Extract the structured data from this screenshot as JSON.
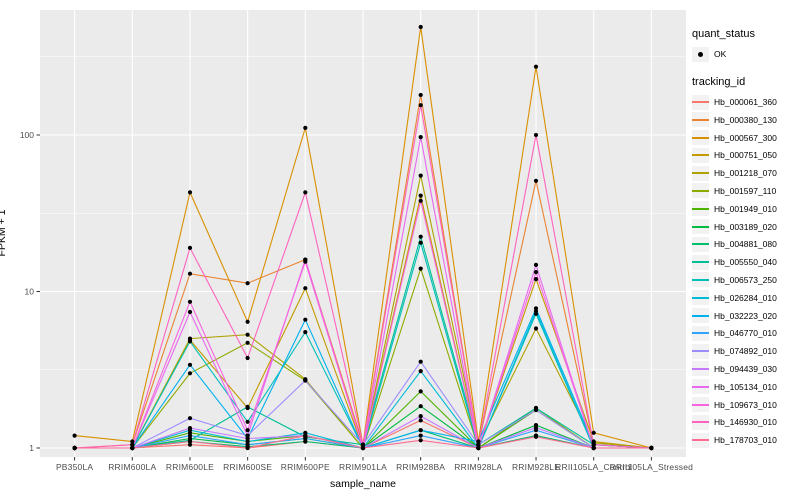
{
  "axes": {
    "x_label": "sample_name",
    "y_label": "FPKM + 1"
  },
  "legend": {
    "quant_title": "quant_status",
    "quant_items": [
      {
        "label": "OK",
        "marker": "point-icon"
      }
    ],
    "tracking_title": "tracking_id"
  },
  "colors": {
    "panel_background": "#EBEBEB",
    "gridline": "#FFFFFF",
    "tick_label": "#4D4D4D",
    "tick_mark": "#333333",
    "point": "#000000",
    "legend_key_background": "#F2F2F2"
  },
  "chart_data": {
    "type": "line",
    "x_axis": "sample_name",
    "y_axis": "FPKM + 1",
    "y_scale": "log10",
    "y_ticks": [
      1,
      10,
      100
    ],
    "y_minor_ticks": [
      3.162,
      31.62,
      316.2
    ],
    "ylim": [
      1,
      550
    ],
    "grid": true,
    "legend_position": "right",
    "point_color": "#000000",
    "categories": [
      "PB350LA",
      "RRIM600LA",
      "RRIM600LE",
      "RRIM600SE",
      "RRIM600PE",
      "RRIM901LA",
      "RRIM928BA",
      "RRIM928LA",
      "RRIM928LE",
      "RRII105LA_Control",
      "RRII105LA_Stressed"
    ],
    "series": [
      {
        "name": "Hb_000061_360",
        "color": "#F8766D",
        "values": [
          1,
          1,
          1.05,
          1,
          1.1,
          1,
          1.5,
          1,
          1.2,
          1,
          1
        ]
      },
      {
        "name": "Hb_000380_130",
        "color": "#EA8331",
        "values": [
          1,
          1.05,
          13,
          11.3,
          16,
          1.05,
          180,
          1.05,
          51,
          1.05,
          1
        ]
      },
      {
        "name": "Hb_000567_300",
        "color": "#D89000",
        "values": [
          1.2,
          1.1,
          43,
          6.4,
          111,
          1.05,
          490,
          1.1,
          273,
          1.25,
          1
        ]
      },
      {
        "name": "Hb_000751_050",
        "color": "#C49A00",
        "values": [
          1,
          1,
          4.9,
          1.8,
          10.5,
          1,
          41,
          1,
          12,
          1.1,
          1
        ]
      },
      {
        "name": "Hb_001218_070",
        "color": "#AEA200",
        "values": [
          1,
          1,
          5.0,
          5.3,
          2.75,
          1,
          55,
          1.05,
          5.8,
          1.08,
          1
        ]
      },
      {
        "name": "Hb_001597_110",
        "color": "#8CAB00",
        "values": [
          1,
          1,
          3.0,
          4.7,
          2.7,
          1,
          14,
          1,
          1.8,
          1,
          1
        ]
      },
      {
        "name": "Hb_001949_010",
        "color": "#4CB400",
        "values": [
          1,
          1,
          1.25,
          1.1,
          1.2,
          1,
          2.3,
          1,
          1.75,
          1,
          1
        ]
      },
      {
        "name": "Hb_003189_020",
        "color": "#00BA42",
        "values": [
          1,
          1,
          1.15,
          1.05,
          1.15,
          1,
          1.85,
          1,
          1.4,
          1,
          1
        ]
      },
      {
        "name": "Hb_004881_080",
        "color": "#00BE70",
        "values": [
          1,
          1,
          1.1,
          1.02,
          1.1,
          1,
          1.3,
          1,
          1.2,
          1,
          1
        ]
      },
      {
        "name": "Hb_005550_040",
        "color": "#00BF96",
        "values": [
          1,
          1,
          1.12,
          1.83,
          1.18,
          1.05,
          22.4,
          1.05,
          1.8,
          1.05,
          1
        ]
      },
      {
        "name": "Hb_006573_250",
        "color": "#00C0B8",
        "values": [
          1,
          1,
          4.8,
          1.47,
          5.5,
          1,
          20.5,
          1,
          7.2,
          1,
          1
        ]
      },
      {
        "name": "Hb_026284_010",
        "color": "#00BBD6",
        "values": [
          1,
          1,
          1.3,
          1.1,
          1.25,
          1,
          3.1,
          1,
          7.5,
          1,
          1
        ]
      },
      {
        "name": "Hb_032223_020",
        "color": "#00B1EE",
        "values": [
          1,
          1,
          3.4,
          1.15,
          6.6,
          1,
          1.3,
          1.1,
          7.8,
          1.05,
          1
        ]
      },
      {
        "name": "Hb_046770_010",
        "color": "#2FA4FF",
        "values": [
          1,
          1,
          1.2,
          1.05,
          1.15,
          1,
          1.2,
          1,
          1.3,
          1,
          1
        ]
      },
      {
        "name": "Hb_074892_010",
        "color": "#9C8DFF",
        "values": [
          1,
          1,
          1.55,
          1.2,
          2.7,
          1.05,
          3.56,
          1.05,
          1.75,
          1,
          1
        ]
      },
      {
        "name": "Hb_094439_030",
        "color": "#C579FF",
        "values": [
          1,
          1,
          1.34,
          1.15,
          1.2,
          1,
          1.6,
          1,
          1.35,
          1,
          1
        ]
      },
      {
        "name": "Hb_105134_010",
        "color": "#E868F0",
        "values": [
          1,
          1,
          7.4,
          1.2,
          16,
          1,
          97,
          1,
          14.8,
          1,
          1
        ]
      },
      {
        "name": "Hb_109673_010",
        "color": "#F863E0",
        "values": [
          1,
          1,
          8.6,
          1.3,
          15.5,
          1,
          38,
          1,
          13.3,
          1,
          1
        ]
      },
      {
        "name": "Hb_146930_010",
        "color": "#FF62BE",
        "values": [
          1,
          1.05,
          19,
          3.76,
          43,
          1.05,
          155,
          1.05,
          100,
          1.05,
          1
        ]
      },
      {
        "name": "Hb_178703_010",
        "color": "#FF6C91",
        "values": [
          1,
          1,
          1.1,
          1,
          1.2,
          1,
          1.12,
          1,
          1.18,
          1,
          1
        ]
      }
    ]
  }
}
